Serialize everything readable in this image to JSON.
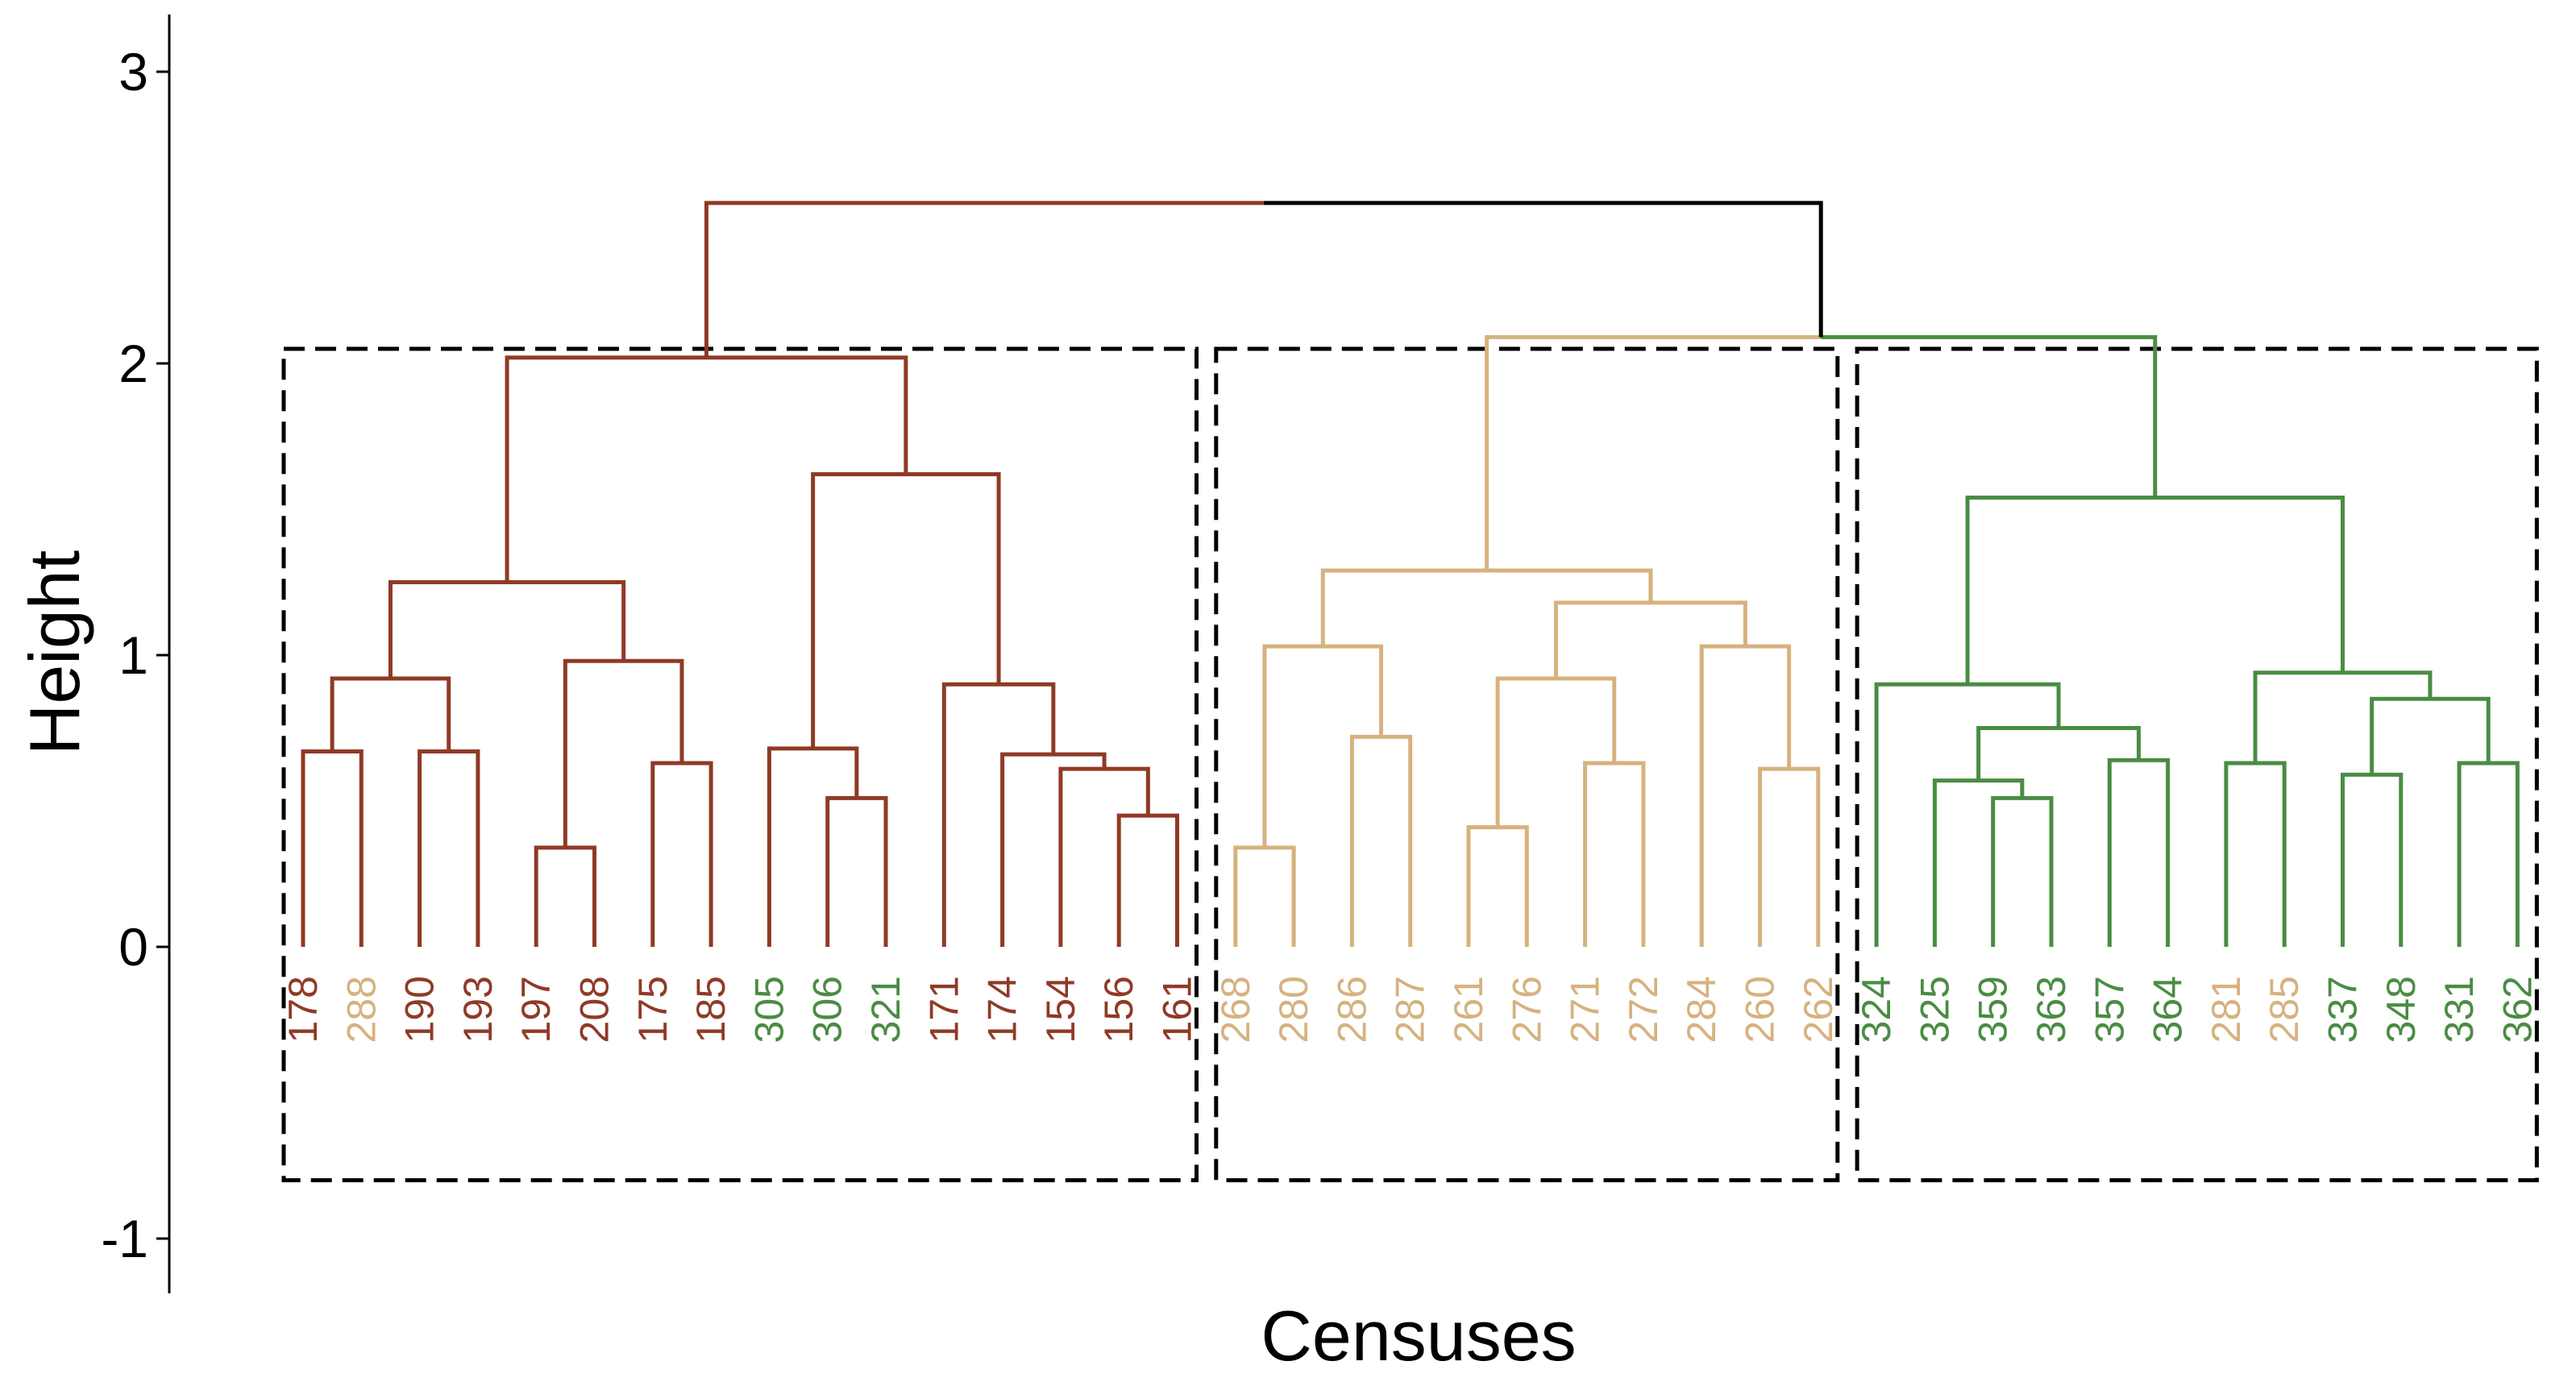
{
  "chart_data": {
    "type": "dendrogram",
    "xlabel": "Censuses",
    "ylabel": "Height",
    "ylim": [
      -1.2,
      3.2
    ],
    "yticks": [
      {
        "value": 3,
        "label": "3"
      },
      {
        "value": 2,
        "label": "2"
      },
      {
        "value": 1,
        "label": "1"
      },
      {
        "value": 0,
        "label": "0"
      },
      {
        "value": -1,
        "label": "-1"
      }
    ],
    "leaves": [
      {
        "id": "178",
        "group": 1
      },
      {
        "id": "288",
        "group": 2
      },
      {
        "id": "190",
        "group": 1
      },
      {
        "id": "193",
        "group": 1
      },
      {
        "id": "197",
        "group": 1
      },
      {
        "id": "208",
        "group": 1
      },
      {
        "id": "175",
        "group": 1
      },
      {
        "id": "185",
        "group": 1
      },
      {
        "id": "305",
        "group": 3
      },
      {
        "id": "306",
        "group": 3
      },
      {
        "id": "321",
        "group": 3
      },
      {
        "id": "171",
        "group": 1
      },
      {
        "id": "174",
        "group": 1
      },
      {
        "id": "154",
        "group": 1
      },
      {
        "id": "156",
        "group": 1
      },
      {
        "id": "161",
        "group": 1
      },
      {
        "id": "268",
        "group": 2
      },
      {
        "id": "280",
        "group": 2
      },
      {
        "id": "286",
        "group": 2
      },
      {
        "id": "287",
        "group": 2
      },
      {
        "id": "261",
        "group": 2
      },
      {
        "id": "276",
        "group": 2
      },
      {
        "id": "271",
        "group": 2
      },
      {
        "id": "272",
        "group": 2
      },
      {
        "id": "284",
        "group": 2
      },
      {
        "id": "260",
        "group": 2
      },
      {
        "id": "262",
        "group": 2
      },
      {
        "id": "324",
        "group": 3
      },
      {
        "id": "325",
        "group": 3
      },
      {
        "id": "359",
        "group": 3
      },
      {
        "id": "363",
        "group": 3
      },
      {
        "id": "357",
        "group": 3
      },
      {
        "id": "364",
        "group": 3
      },
      {
        "id": "281",
        "group": 2
      },
      {
        "id": "285",
        "group": 2
      },
      {
        "id": "337",
        "group": 3
      },
      {
        "id": "348",
        "group": 3
      },
      {
        "id": "331",
        "group": 3
      },
      {
        "id": "362",
        "group": 3
      }
    ],
    "merges": [
      {
        "id": "m1",
        "left": "178",
        "right": "288",
        "height": 0.67,
        "cluster": 1
      },
      {
        "id": "m2",
        "left": "190",
        "right": "193",
        "height": 0.67,
        "cluster": 1
      },
      {
        "id": "m3",
        "left": "m1",
        "right": "m2",
        "height": 0.92,
        "cluster": 1
      },
      {
        "id": "m4",
        "left": "197",
        "right": "208",
        "height": 0.34,
        "cluster": 1
      },
      {
        "id": "m5",
        "left": "175",
        "right": "185",
        "height": 0.63,
        "cluster": 1
      },
      {
        "id": "m6",
        "left": "m4",
        "right": "m5",
        "height": 0.98,
        "cluster": 1
      },
      {
        "id": "m7",
        "left": "m3",
        "right": "m6",
        "height": 1.25,
        "cluster": 1
      },
      {
        "id": "m8",
        "left": "306",
        "right": "321",
        "height": 0.51,
        "cluster": 1
      },
      {
        "id": "m9",
        "left": "305",
        "right": "m8",
        "height": 0.68,
        "cluster": 1
      },
      {
        "id": "m10",
        "left": "156",
        "right": "161",
        "height": 0.45,
        "cluster": 1
      },
      {
        "id": "m11",
        "left": "154",
        "right": "m10",
        "height": 0.61,
        "cluster": 1
      },
      {
        "id": "m12",
        "left": "174",
        "right": "m11",
        "height": 0.66,
        "cluster": 1
      },
      {
        "id": "m13",
        "left": "171",
        "right": "m12",
        "height": 0.9,
        "cluster": 1
      },
      {
        "id": "m14",
        "left": "m9",
        "right": "m13",
        "height": 1.62,
        "cluster": 1
      },
      {
        "id": "m15",
        "left": "m7",
        "right": "m14",
        "height": 2.02,
        "cluster": 1
      },
      {
        "id": "m16",
        "left": "268",
        "right": "280",
        "height": 0.34,
        "cluster": 2
      },
      {
        "id": "m17",
        "left": "286",
        "right": "287",
        "height": 0.72,
        "cluster": 2
      },
      {
        "id": "m18",
        "left": "m16",
        "right": "m17",
        "height": 1.03,
        "cluster": 2
      },
      {
        "id": "m19",
        "left": "261",
        "right": "276",
        "height": 0.41,
        "cluster": 2
      },
      {
        "id": "m20",
        "left": "271",
        "right": "272",
        "height": 0.63,
        "cluster": 2
      },
      {
        "id": "m21",
        "left": "m19",
        "right": "m20",
        "height": 0.92,
        "cluster": 2
      },
      {
        "id": "m22",
        "left": "260",
        "right": "262",
        "height": 0.61,
        "cluster": 2
      },
      {
        "id": "m23",
        "left": "284",
        "right": "m22",
        "height": 1.03,
        "cluster": 2
      },
      {
        "id": "m24",
        "left": "m21",
        "right": "m23",
        "height": 1.18,
        "cluster": 2
      },
      {
        "id": "m25",
        "left": "m18",
        "right": "m24",
        "height": 1.29,
        "cluster": 2
      },
      {
        "id": "m26",
        "left": "359",
        "right": "363",
        "height": 0.51,
        "cluster": 3
      },
      {
        "id": "m27",
        "left": "325",
        "right": "m26",
        "height": 0.57,
        "cluster": 3
      },
      {
        "id": "m28",
        "left": "357",
        "right": "364",
        "height": 0.64,
        "cluster": 3
      },
      {
        "id": "m29",
        "left": "m27",
        "right": "m28",
        "height": 0.75,
        "cluster": 3
      },
      {
        "id": "m30",
        "left": "324",
        "right": "m29",
        "height": 0.9,
        "cluster": 3
      },
      {
        "id": "m31",
        "left": "281",
        "right": "285",
        "height": 0.63,
        "cluster": 3
      },
      {
        "id": "m32",
        "left": "337",
        "right": "348",
        "height": 0.59,
        "cluster": 3
      },
      {
        "id": "m33",
        "left": "331",
        "right": "362",
        "height": 0.63,
        "cluster": 3
      },
      {
        "id": "m34",
        "left": "m32",
        "right": "m33",
        "height": 0.85,
        "cluster": 3
      },
      {
        "id": "m35",
        "left": "m31",
        "right": "m34",
        "height": 0.94,
        "cluster": 3
      },
      {
        "id": "m36",
        "left": "m30",
        "right": "m35",
        "height": 1.54,
        "cluster": 3
      },
      {
        "id": "m37",
        "left": "m25",
        "right": "m36",
        "height": 2.09,
        "cluster": 0
      },
      {
        "id": "m38",
        "left": "m15",
        "right": "m37",
        "height": 2.55,
        "cluster": 0
      }
    ],
    "clusters": [
      {
        "id": 1,
        "leaves": [
          "178",
          "161"
        ]
      },
      {
        "id": 2,
        "leaves": [
          "268",
          "262"
        ]
      },
      {
        "id": 3,
        "leaves": [
          "324",
          "362"
        ]
      }
    ],
    "cluster_box_range": [
      -0.8,
      2.05
    ],
    "colors": {
      "group1": "#8f3a26",
      "group2": "#d6b27f",
      "group3": "#4a8c44",
      "root": "#000000",
      "axis": "#000000"
    }
  }
}
